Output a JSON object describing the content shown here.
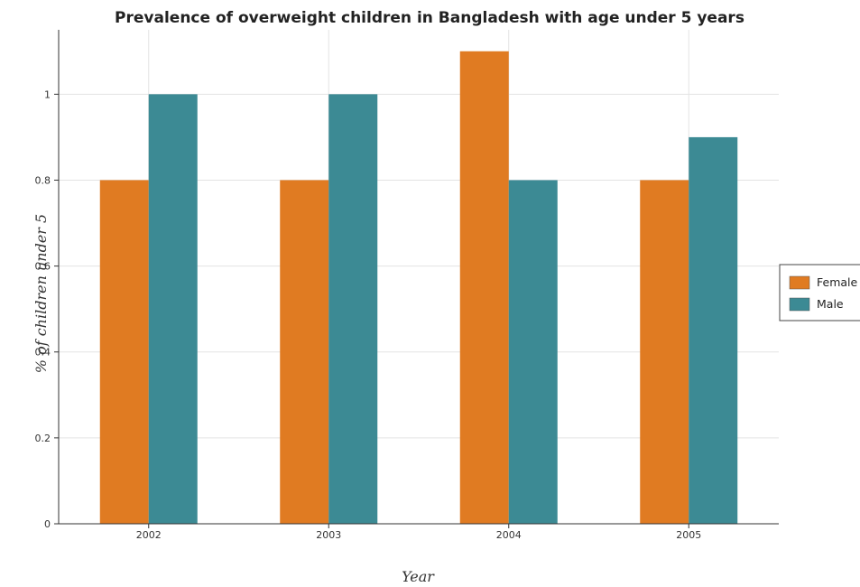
{
  "chart_data": {
    "type": "bar",
    "title": "Prevalence of overweight children in Bangladesh with age under 5 years",
    "xlabel": "Year",
    "ylabel": "% of children under 5",
    "categories": [
      "2002",
      "2003",
      "2004",
      "2005"
    ],
    "series": [
      {
        "name": "Female",
        "values": [
          0.8,
          0.8,
          1.1,
          0.8
        ],
        "color": "#e07b22"
      },
      {
        "name": "Male",
        "values": [
          1.0,
          1.0,
          0.8,
          0.9
        ],
        "color": "#3c8a94"
      }
    ],
    "ylim": [
      0,
      1.15
    ],
    "yticks": [
      "0",
      "0.2",
      "0.4",
      "0.6",
      "0.8",
      "1"
    ],
    "grid": true,
    "legend_position": "right"
  }
}
